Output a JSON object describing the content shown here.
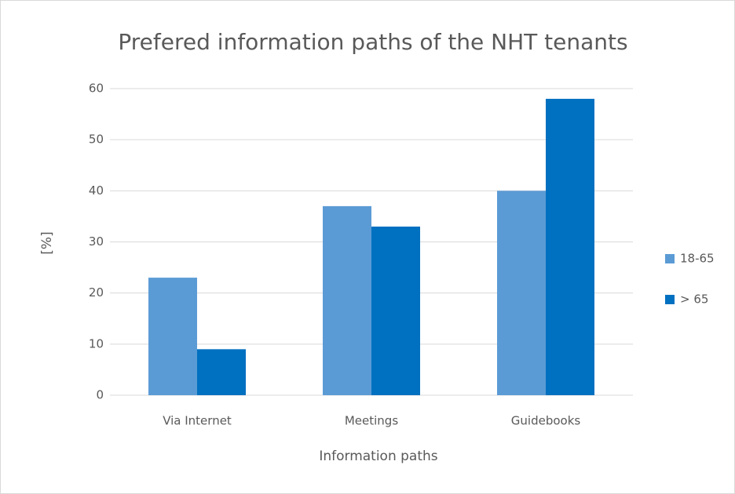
{
  "chart_data": {
    "type": "bar",
    "title": "Prefered information paths of the NHT tenants",
    "x_label": "Information paths",
    "y_label": "[%]",
    "categories": [
      "Via Internet",
      "Meetings",
      "Guidebooks"
    ],
    "series": [
      {
        "name": "18-65",
        "color": "#5b9bd5",
        "values": [
          23,
          37,
          40
        ]
      },
      {
        "name": "> 65",
        "color": "#0070c0",
        "values": [
          9,
          33,
          58
        ]
      }
    ],
    "ylim": [
      0,
      60
    ],
    "yticks": [
      0,
      10,
      20,
      30,
      40,
      50,
      60
    ],
    "grid": true,
    "legend": "right"
  }
}
